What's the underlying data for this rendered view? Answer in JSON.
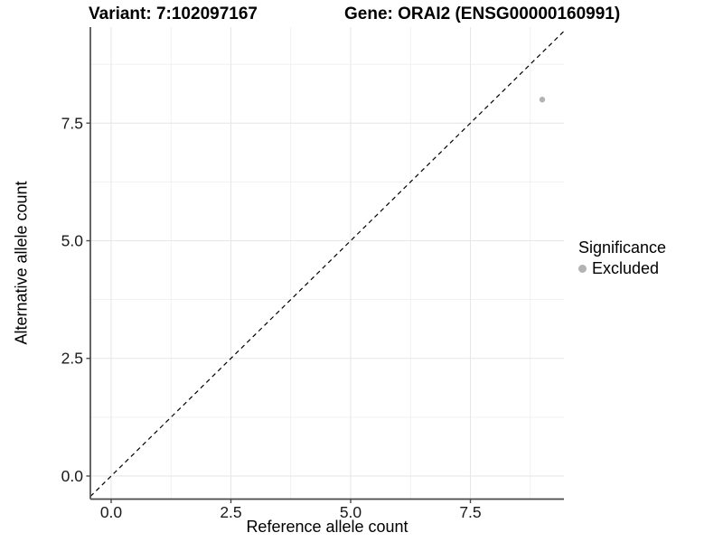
{
  "titles": {
    "variant": "Variant: 7:102097167",
    "gene": "Gene: ORAI2 (ENSG00000160991)"
  },
  "chart_data": {
    "type": "scatter",
    "title": "Variant: 7:102097167    Gene: ORAI2 (ENSG00000160991)",
    "xlabel": "Reference allele count",
    "ylabel": "Alternative allele count",
    "xlim": [
      -0.434,
      9.453
    ],
    "ylim": [
      -0.49,
      9.54
    ],
    "x_ticks": [
      0.0,
      2.5,
      5.0,
      7.5
    ],
    "y_ticks": [
      0.0,
      2.5,
      5.0,
      7.5
    ],
    "x_tick_labels": [
      "0.0",
      "2.5",
      "5.0",
      "7.5"
    ],
    "y_tick_labels": [
      "0.0",
      "2.5",
      "5.0",
      "7.5"
    ],
    "x_minor_gridlines": [
      1.25,
      3.75,
      6.25,
      8.75
    ],
    "y_minor_gridlines": [
      1.25,
      3.75,
      6.25,
      8.75
    ],
    "grid": true,
    "series": [
      {
        "name": "Excluded",
        "points": [
          {
            "x": 9,
            "y": 8
          }
        ],
        "color": "#b3b3b3"
      }
    ],
    "reference_line": {
      "type": "identity",
      "equation": "y = x",
      "style": "dashed",
      "color": "#000000"
    },
    "legend": {
      "title": "Significance",
      "position": "right",
      "items": [
        {
          "label": "Excluded",
          "color": "#b3b3b3"
        }
      ]
    },
    "colors": {
      "background": "#ffffff",
      "panel_background": "#ffffff",
      "grid_major": "#e7e7e7",
      "grid_minor": "#f1f1f1",
      "axis_line": "#4a4a4a",
      "tick_label": "#1a1a1a",
      "point": "#b3b3b3"
    }
  }
}
